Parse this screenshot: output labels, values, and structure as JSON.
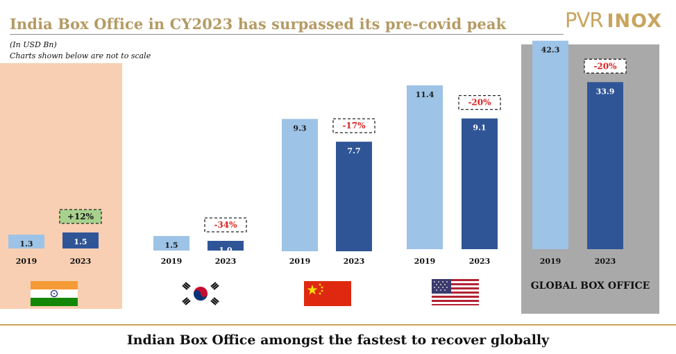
{
  "header": {
    "title": "India Box Office in CY2023 has surpassed its pre-covid peak",
    "unit_note": "(In USD Bn)",
    "scale_note": "Charts shown below are not to scale",
    "logo_pvr": "PVR",
    "logo_inox": "INOX"
  },
  "footer": {
    "text": "Indian Box Office amongst the fastest to recover globally"
  },
  "global_label": "GLOBAL BOX OFFICE",
  "icons": [
    "india-flag-icon",
    "south-korea-flag-icon",
    "china-flag-icon",
    "usa-flag-icon"
  ],
  "colors": {
    "bar_2019": "#9dc3e6",
    "bar_2023": "#2f5597",
    "negative_change": "#e02020",
    "positive_change": "#111111",
    "positive_badge_bg": "#a9d18e",
    "title": "#b59a63",
    "india_panel": "#f8cfb2",
    "global_panel": "#a9a9a9"
  },
  "chart_data": {
    "type": "bar",
    "categories": [
      "2019",
      "2023"
    ],
    "groups": [
      {
        "market": "India",
        "values": [
          1.3,
          1.5
        ],
        "labels": [
          "1.3",
          "1.5"
        ],
        "change": "+12%",
        "icon": "india-flag-icon"
      },
      {
        "market": "South Korea",
        "values": [
          1.5,
          1.0
        ],
        "labels": [
          "1.5",
          "1.0"
        ],
        "change": "-34%",
        "icon": "south-korea-flag-icon"
      },
      {
        "market": "China",
        "values": [
          9.3,
          7.7
        ],
        "labels": [
          "9.3",
          "7.7"
        ],
        "change": "-17%",
        "icon": "china-flag-icon"
      },
      {
        "market": "USA",
        "values": [
          11.4,
          9.1
        ],
        "labels": [
          "11.4",
          "9.1"
        ],
        "change": "-20%",
        "icon": "usa-flag-icon"
      },
      {
        "market": "GLOBAL BOX OFFICE",
        "values": [
          42.3,
          33.9
        ],
        "labels": [
          "42.3",
          "33.9"
        ],
        "change": "-20%",
        "icon": ""
      }
    ],
    "note": "Charts shown below are not to scale",
    "unit": "USD Bn"
  }
}
